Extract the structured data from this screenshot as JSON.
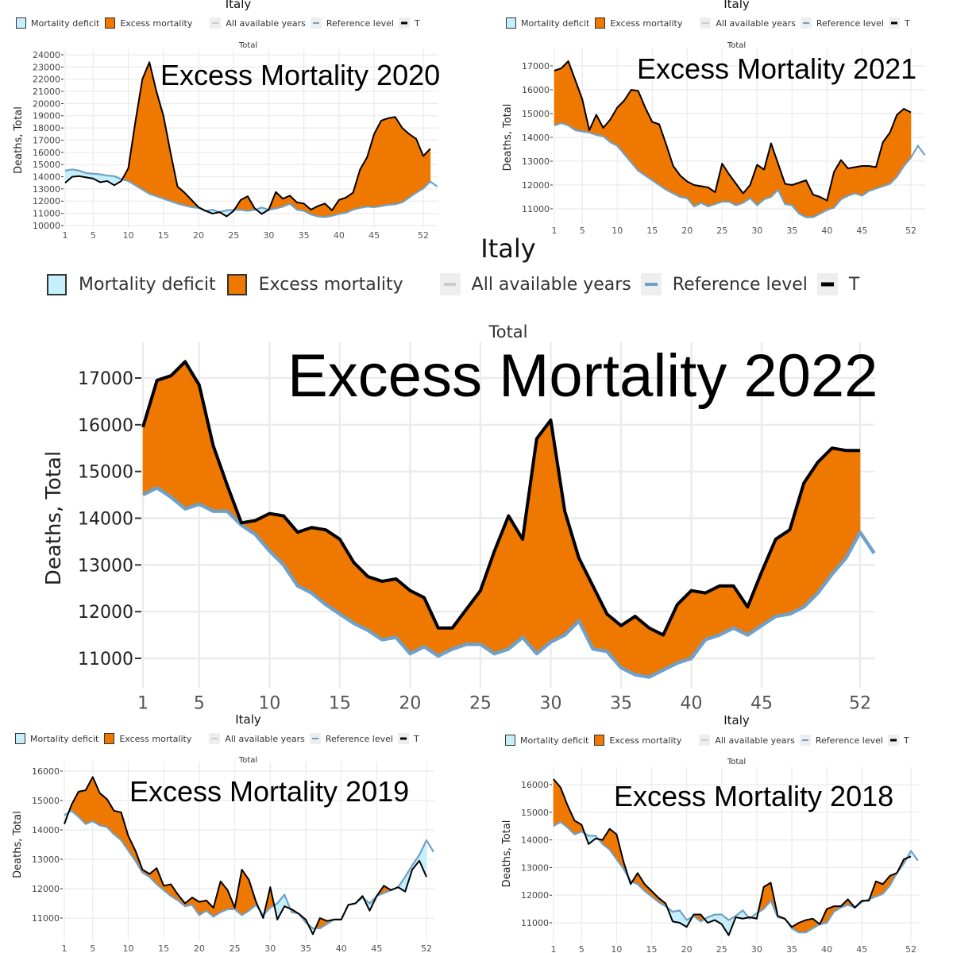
{
  "legend": {
    "deficit": "Mortality deficit",
    "excess": "Excess mortality",
    "all_years": "All available years",
    "reference": "Reference level",
    "total_trunc": "T"
  },
  "colors": {
    "deficit": "#c6effc",
    "excess": "#ee7800",
    "reference": "#6fa0c8",
    "observed": "#000000",
    "all_years": "#cccccc",
    "grid": "#ebebeb"
  },
  "chart_data": [
    {
      "id": "2020",
      "type": "area",
      "country": "Italy",
      "facet": "Total",
      "title": "Excess Mortality 2020",
      "ylabel": "Deaths, Total",
      "xlabel": "",
      "xticks": [
        "1",
        "5",
        "10",
        "15",
        "20",
        "25",
        "30",
        "35",
        "40",
        "45",
        "52"
      ],
      "ylim": [
        10000,
        24000
      ],
      "yticks": [
        10000,
        11000,
        12000,
        13000,
        14000,
        15000,
        16000,
        17000,
        18000,
        19000,
        20000,
        21000,
        22000,
        23000,
        24000
      ],
      "grid": true,
      "legend_position": "top",
      "series": [
        {
          "name": "Reference level",
          "values": [
            14500,
            14600,
            14500,
            14300,
            14250,
            14200,
            14100,
            14050,
            13800,
            13650,
            13300,
            12950,
            12600,
            12400,
            12200,
            12000,
            11800,
            11650,
            11500,
            11450,
            11200,
            11300,
            11100,
            11250,
            11300,
            11280,
            11200,
            11300,
            11480,
            11280,
            11400,
            11550,
            11800,
            11300,
            11200,
            10900,
            10750,
            10700,
            10800,
            10950,
            11050,
            11300,
            11450,
            11550,
            11500,
            11600,
            11700,
            11750,
            11900,
            12300,
            12700,
            13050,
            13600,
            13200
          ]
        },
        {
          "name": "Total",
          "values": [
            13500,
            14000,
            14050,
            13950,
            13850,
            13550,
            13650,
            13300,
            13650,
            14700,
            18500,
            22000,
            23400,
            21000,
            19000,
            16000,
            13200,
            12700,
            12100,
            11500,
            11200,
            10980,
            11100,
            10750,
            11200,
            12100,
            12400,
            11400,
            10950,
            11300,
            12750,
            12200,
            12450,
            11900,
            11800,
            11300,
            11600,
            11800,
            11250,
            12100,
            12300,
            12700,
            14600,
            15600,
            17500,
            18600,
            18800,
            18900,
            18000,
            17500,
            17100,
            15700,
            16300
          ]
        }
      ]
    },
    {
      "id": "2021",
      "type": "area",
      "country": "Italy",
      "facet": "Total",
      "title": "Excess Mortality 2021",
      "ylabel": "Deaths, Total",
      "xlabel": "",
      "xticks": [
        "1",
        "5",
        "10",
        "15",
        "20",
        "25",
        "30",
        "35",
        "40",
        "45",
        "52"
      ],
      "ylim": [
        10500,
        17500
      ],
      "yticks": [
        11000,
        12000,
        13000,
        14000,
        15000,
        16000,
        17000
      ],
      "grid": true,
      "legend_position": "top",
      "series": [
        {
          "name": "Reference level",
          "values": [
            14500,
            14600,
            14500,
            14300,
            14250,
            14200,
            14100,
            14050,
            13800,
            13650,
            13300,
            12950,
            12600,
            12400,
            12200,
            12000,
            11800,
            11650,
            11500,
            11450,
            11100,
            11250,
            11100,
            11200,
            11300,
            11300,
            11150,
            11250,
            11450,
            11150,
            11400,
            11500,
            11800,
            11200,
            11150,
            10800,
            10650,
            10650,
            10800,
            10950,
            11050,
            11400,
            11550,
            11650,
            11550,
            11750,
            11850,
            11950,
            12050,
            12350,
            12800,
            13150,
            13650,
            13250
          ]
        },
        {
          "name": "Total",
          "values": [
            16800,
            16900,
            17200,
            16400,
            15600,
            14300,
            14950,
            14400,
            14750,
            15250,
            15550,
            16000,
            15950,
            15250,
            14650,
            14550,
            13700,
            12800,
            12400,
            12150,
            12000,
            11950,
            11900,
            11700,
            12900,
            12450,
            12050,
            11650,
            12000,
            12850,
            12650,
            13750,
            12900,
            12050,
            12000,
            12100,
            12200,
            11600,
            11500,
            11350,
            12550,
            13050,
            12700,
            12750,
            12800,
            12800,
            12750,
            13800,
            14200,
            14950,
            15200,
            15050
          ]
        }
      ]
    },
    {
      "id": "2022",
      "type": "area",
      "country": "Italy",
      "facet": "Total",
      "title": "Excess Mortality 2022",
      "ylabel": "Deaths, Total",
      "xlabel": "",
      "xticks": [
        "1",
        "5",
        "10",
        "15",
        "20",
        "25",
        "30",
        "35",
        "40",
        "45",
        "52"
      ],
      "ylim": [
        10500,
        17500
      ],
      "yticks": [
        11000,
        12000,
        13000,
        14000,
        15000,
        16000,
        17000
      ],
      "grid": true,
      "legend_position": "top",
      "series": [
        {
          "name": "Reference level",
          "values": [
            14500,
            14650,
            14450,
            14200,
            14300,
            14150,
            14150,
            13850,
            13650,
            13300,
            13000,
            12550,
            12400,
            12150,
            11950,
            11750,
            11600,
            11400,
            11450,
            11100,
            11250,
            11050,
            11200,
            11300,
            11300,
            11100,
            11200,
            11450,
            11100,
            11350,
            11500,
            11800,
            11200,
            11150,
            10800,
            10650,
            10600,
            10750,
            10900,
            11000,
            11400,
            11500,
            11650,
            11500,
            11700,
            11900,
            11950,
            12100,
            12400,
            12800,
            13150,
            13700,
            13250
          ]
        },
        {
          "name": "Total",
          "values": [
            15950,
            16950,
            17050,
            17350,
            16850,
            15550,
            14700,
            13900,
            13950,
            14100,
            14050,
            13700,
            13800,
            13750,
            13550,
            13050,
            12750,
            12650,
            12700,
            12450,
            12300,
            11650,
            11650,
            12050,
            12450,
            13300,
            14050,
            13550,
            15700,
            16100,
            14150,
            13150,
            12550,
            11950,
            11700,
            11900,
            11650,
            11500,
            12150,
            12450,
            12400,
            12550,
            12550,
            12100,
            12850,
            13550,
            13750,
            14750,
            15200,
            15500,
            15450,
            15450
          ]
        }
      ]
    },
    {
      "id": "2019",
      "type": "area",
      "country": "Italy",
      "facet": "Total",
      "title": "Excess Mortality 2019",
      "ylabel": "Deaths, Total",
      "xlabel": "",
      "xticks": [
        "1",
        "5",
        "10",
        "15",
        "20",
        "25",
        "30",
        "35",
        "40",
        "45",
        "52"
      ],
      "ylim": [
        10300,
        16100
      ],
      "yticks": [
        11000,
        12000,
        13000,
        14000,
        15000,
        16000
      ],
      "grid": true,
      "legend_position": "top",
      "series": [
        {
          "name": "Reference level",
          "values": [
            14500,
            14650,
            14450,
            14200,
            14300,
            14150,
            14100,
            13850,
            13650,
            13300,
            12950,
            12550,
            12400,
            12150,
            11950,
            11750,
            11600,
            11400,
            11450,
            11100,
            11250,
            11050,
            11200,
            11300,
            11300,
            11100,
            11250,
            11450,
            11100,
            11350,
            11500,
            11800,
            11200,
            11150,
            10850,
            10650,
            10650,
            10800,
            10950,
            10950,
            11450,
            11500,
            11700,
            11500,
            11750,
            11850,
            11950,
            12050,
            12400,
            12800,
            13150,
            13650,
            13250
          ]
        },
        {
          "name": "Total",
          "values": [
            14200,
            14850,
            15300,
            15350,
            15800,
            15250,
            15050,
            14650,
            14600,
            13800,
            13300,
            12650,
            12500,
            12700,
            12100,
            12150,
            11800,
            11500,
            11700,
            11550,
            11600,
            11350,
            12250,
            11950,
            11350,
            12650,
            12300,
            11550,
            11000,
            12050,
            10950,
            11400,
            11300,
            11150,
            10950,
            10450,
            11000,
            10900,
            10950,
            10950,
            11450,
            11500,
            11750,
            11250,
            11750,
            12100,
            11950,
            12050,
            11900,
            12650,
            12950,
            12400
          ]
        }
      ]
    },
    {
      "id": "2018",
      "type": "area",
      "country": "Italy",
      "facet": "Total",
      "title": "Excess Mortality 2018",
      "ylabel": "Deaths, Total",
      "xlabel": "",
      "xticks": [
        "1",
        "5",
        "10",
        "15",
        "20",
        "25",
        "30",
        "35",
        "40",
        "45",
        "52"
      ],
      "ylim": [
        10400,
        16400
      ],
      "yticks": [
        11000,
        12000,
        13000,
        14000,
        15000,
        16000
      ],
      "grid": true,
      "legend_position": "top",
      "series": [
        {
          "name": "Reference level",
          "values": [
            14500,
            14650,
            14450,
            14200,
            14300,
            14150,
            14150,
            13850,
            13650,
            13300,
            12950,
            12500,
            12400,
            12150,
            11950,
            11750,
            11600,
            11400,
            11450,
            11100,
            11250,
            11050,
            11200,
            11300,
            11300,
            11100,
            11250,
            11450,
            11150,
            11350,
            11500,
            11800,
            11200,
            11150,
            10800,
            10650,
            10650,
            10800,
            10950,
            11000,
            11400,
            11550,
            11650,
            11550,
            11750,
            11850,
            11950,
            12050,
            12350,
            12800,
            13150,
            13600,
            13250
          ]
        },
        {
          "name": "Total",
          "values": [
            16200,
            15900,
            15250,
            14700,
            14550,
            13850,
            14050,
            14000,
            14400,
            14200,
            13200,
            12400,
            12800,
            12400,
            12150,
            11900,
            11700,
            11050,
            11000,
            10850,
            11300,
            11300,
            11000,
            11100,
            10950,
            10550,
            11200,
            11150,
            11200,
            11150,
            12300,
            12450,
            11250,
            11150,
            10850,
            11000,
            11100,
            11150,
            10950,
            11500,
            11600,
            11600,
            11850,
            11550,
            11800,
            11800,
            12500,
            12400,
            12700,
            12800,
            13300,
            13400
          ]
        }
      ]
    }
  ]
}
